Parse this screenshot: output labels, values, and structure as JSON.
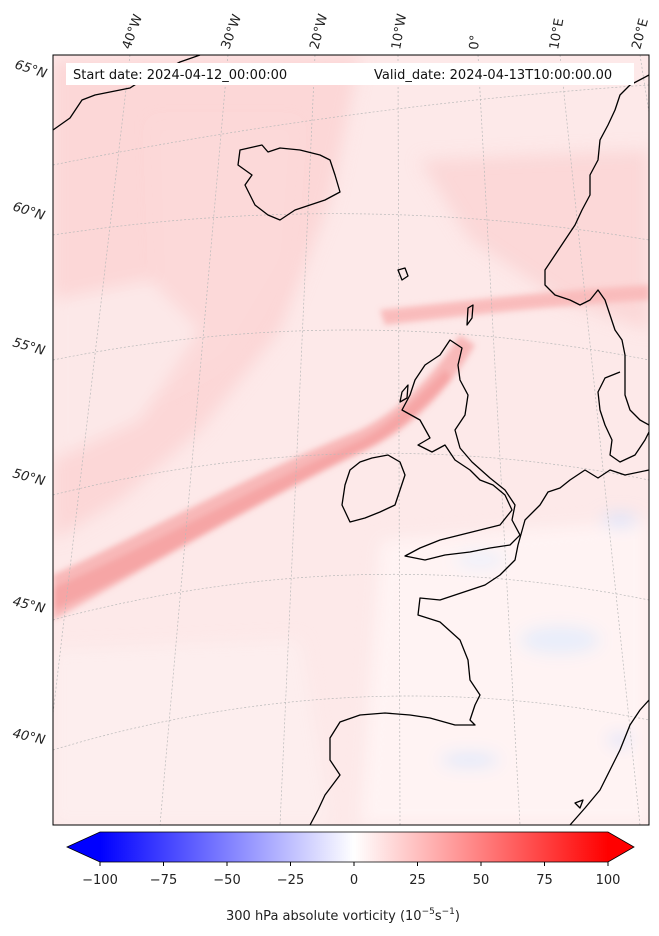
{
  "header": {
    "start_date": "Start date: 2024-04-12_00:00:00",
    "valid_date": "Valid_date: 2024-04-13T10:00:00.00"
  },
  "longitude_labels": [
    "40°W",
    "30°W",
    "20°W",
    "10°W",
    "0°",
    "10°E",
    "20°E"
  ],
  "latitude_labels": [
    "65°N",
    "60°N",
    "55°N",
    "50°N",
    "45°N",
    "40°N"
  ],
  "colorbar": {
    "min": -100,
    "max": 100,
    "ticks": [
      "−100",
      "−75",
      "−50",
      "−25",
      "0",
      "25",
      "50",
      "75",
      "100"
    ],
    "label_main": "300 hPa absolute vorticity (10",
    "label_exp1": "−5",
    "label_mid": "s",
    "label_exp2": "−1",
    "label_end": ")",
    "color_low": "#0000ff",
    "color_mid": "#ffffff",
    "color_high": "#ff0000"
  },
  "colors": {
    "land_outline": "#000000",
    "background_pink": "#fde8e8",
    "jet_core": "#f9b3b3"
  }
}
